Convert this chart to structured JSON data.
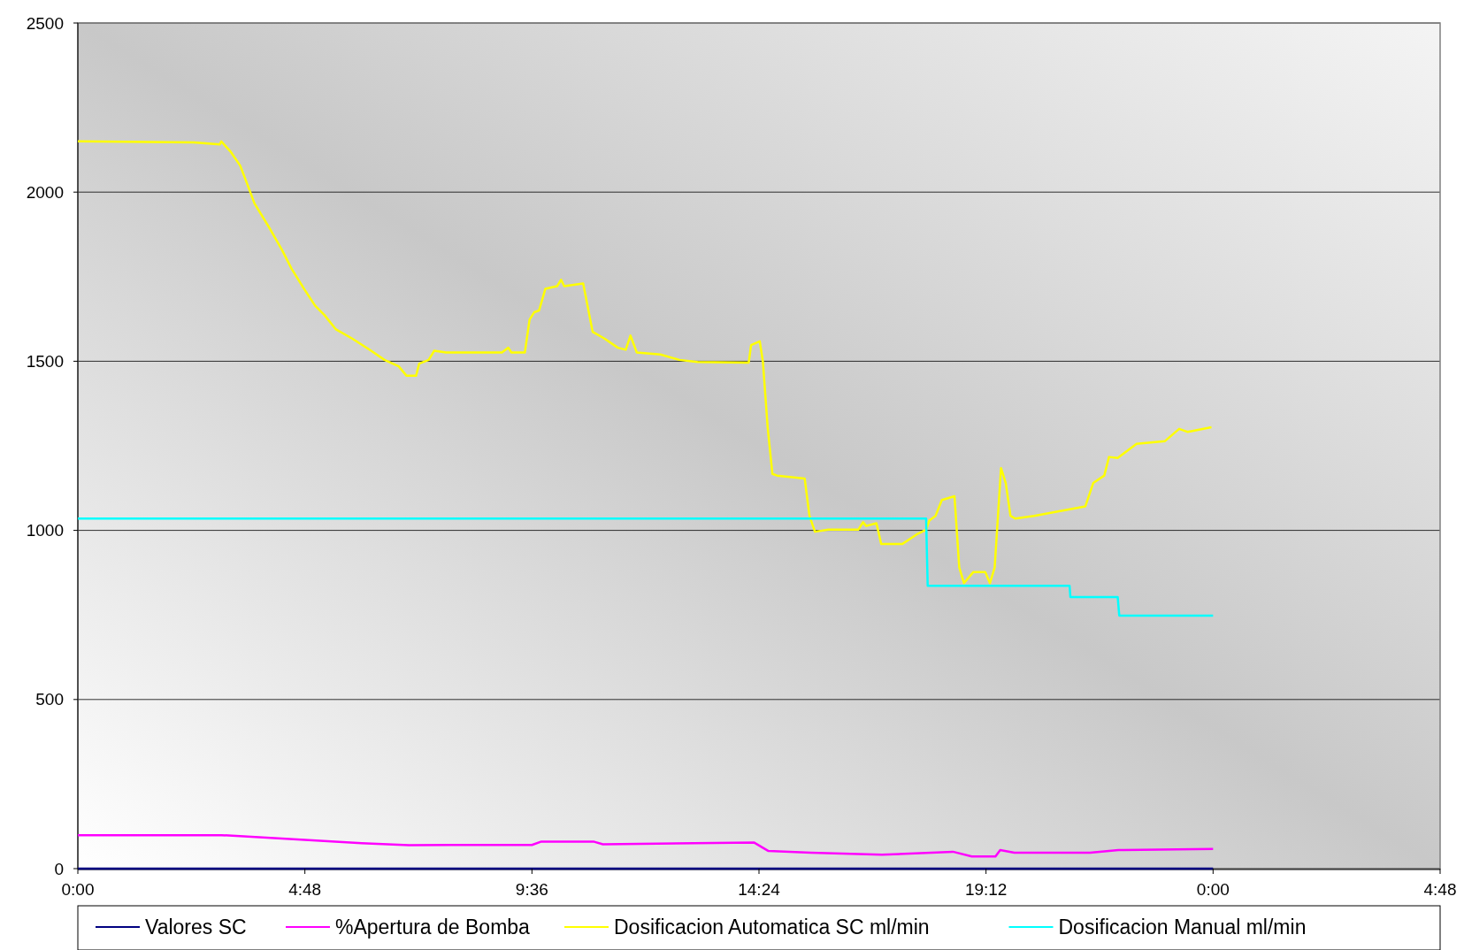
{
  "chart_data": {
    "type": "line",
    "ylim": [
      0,
      2500
    ],
    "yticks": [
      0,
      500,
      1000,
      1500,
      2000,
      2500
    ],
    "xlim": [
      "2000-01-01T00:00",
      "2000-01-02T04:48"
    ],
    "xticks": [
      {
        "value": "2000-01-01T00:00",
        "label": "0:00"
      },
      {
        "value": "2000-01-01T04:48",
        "label": "4:48"
      },
      {
        "value": "2000-01-01T09:36",
        "label": "9:36"
      },
      {
        "value": "2000-01-01T14:24",
        "label": "14:24"
      },
      {
        "value": "2000-01-01T19:12",
        "label": "19:12"
      },
      {
        "value": "2000-01-02T00:00",
        "label": "0:00"
      },
      {
        "value": "2000-01-02T04:48",
        "label": "4:48"
      }
    ],
    "grid": "y",
    "legend": "bottom",
    "marker": "none",
    "line_style": "solid",
    "series": [
      {
        "name": "Valores SC",
        "color": "#000080",
        "x": [
          "2000-01-01T00:00",
          "2000-01-02T00:00"
        ],
        "values": [
          0,
          0
        ]
      },
      {
        "name": "%Apertura de Bomba",
        "color": "#ff00ff",
        "x": [
          "2000-01-01T00:00",
          "2000-01-01T03:02",
          "2000-01-01T04:48",
          "2000-01-01T06:00",
          "2000-01-01T07:00",
          "2000-01-01T08:00",
          "2000-01-01T09:36",
          "2000-01-01T09:48",
          "2000-01-01T10:54",
          "2000-01-01T11:06",
          "2000-01-01T14:18",
          "2000-01-01T14:36",
          "2000-01-01T15:30",
          "2000-01-01T17:00",
          "2000-01-01T18:30",
          "2000-01-01T18:54",
          "2000-01-01T19:24",
          "2000-01-01T19:30",
          "2000-01-01T19:48",
          "2000-01-01T21:24",
          "2000-01-01T22:00",
          "2000-01-02T00:00"
        ],
        "values": [
          99,
          99,
          85,
          75,
          69,
          70,
          70,
          80,
          80,
          72,
          77,
          52,
          47,
          41,
          50,
          36,
          36,
          55,
          47,
          47,
          55,
          58
        ]
      },
      {
        "name": "Dosificacion Automatica SC ml/min",
        "color": "#ffff00",
        "x": [
          "2000-01-01T00:00",
          "2000-01-01T02:27",
          "2000-01-01T03:00",
          "2000-01-01T03:02",
          "2000-01-01T03:14",
          "2000-01-01T03:26",
          "2000-01-01T03:35",
          "2000-01-01T03:44",
          "2000-01-01T04:02",
          "2000-01-01T04:19",
          "2000-01-01T04:31",
          "2000-01-01T04:47",
          "2000-01-01T05:01",
          "2000-01-01T05:13",
          "2000-01-01T05:27",
          "2000-01-01T05:48",
          "2000-01-01T06:12",
          "2000-01-01T06:29",
          "2000-01-01T06:47",
          "2000-01-01T06:57",
          "2000-01-01T07:09",
          "2000-01-01T07:13",
          "2000-01-01T07:25",
          "2000-01-01T07:32",
          "2000-01-01T07:47",
          "2000-01-01T08:58",
          "2000-01-01T09:06",
          "2000-01-01T09:10",
          "2000-01-01T09:27",
          "2000-01-01T09:33",
          "2000-01-01T09:39",
          "2000-01-01T09:45",
          "2000-01-01T09:53",
          "2000-01-01T10:08",
          "2000-01-01T10:13",
          "2000-01-01T10:17",
          "2000-01-01T10:41",
          "2000-01-01T10:53",
          "2000-01-01T11:08",
          "2000-01-01T11:25",
          "2000-01-01T11:35",
          "2000-01-01T11:41",
          "2000-01-01T11:49",
          "2000-01-01T12:19",
          "2000-01-01T12:43",
          "2000-01-01T13:06",
          "2000-01-01T14:11",
          "2000-01-01T14:14",
          "2000-01-01T14:25",
          "2000-01-01T14:29",
          "2000-01-01T14:35",
          "2000-01-01T14:41",
          "2000-01-01T14:47",
          "2000-01-01T15:22",
          "2000-01-01T15:28",
          "2000-01-01T15:35",
          "2000-01-01T15:52",
          "2000-01-01T16:30",
          "2000-01-01T16:36",
          "2000-01-01T16:40",
          "2000-01-01T16:53",
          "2000-01-01T16:59",
          "2000-01-01T17:26",
          "2000-01-01T17:44",
          "2000-01-01T17:56",
          "2000-01-01T18:00",
          "2000-01-01T18:08",
          "2000-01-01T18:16",
          "2000-01-01T18:32",
          "2000-01-01T18:38",
          "2000-01-01T18:44",
          "2000-01-01T18:56",
          "2000-01-01T19:11",
          "2000-01-01T19:17",
          "2000-01-01T19:23",
          "2000-01-01T19:31",
          "2000-01-01T19:37",
          "2000-01-01T19:43",
          "2000-01-01T19:49",
          "2000-01-01T20:13",
          "2000-01-01T20:46",
          "2000-01-01T21:18",
          "2000-01-01T21:28",
          "2000-01-01T21:42",
          "2000-01-01T21:48",
          "2000-01-01T21:59",
          "2000-01-01T22:23",
          "2000-01-01T22:59",
          "2000-01-01T23:17",
          "2000-01-01T23:28",
          "2000-01-01T23:58"
        ],
        "values": [
          2150,
          2147,
          2141,
          2150,
          2119,
          2078,
          2023,
          1967,
          1898,
          1829,
          1774,
          1714,
          1664,
          1636,
          1595,
          1567,
          1531,
          1504,
          1485,
          1457,
          1457,
          1493,
          1504,
          1531,
          1526,
          1526,
          1540,
          1526,
          1526,
          1623,
          1645,
          1650,
          1714,
          1722,
          1741,
          1722,
          1730,
          1587,
          1567,
          1540,
          1534,
          1576,
          1526,
          1520,
          1504,
          1498,
          1496,
          1548,
          1559,
          1498,
          1305,
          1167,
          1162,
          1153,
          1043,
          996,
          1002,
          1002,
          1024,
          1013,
          1021,
          960,
          960,
          988,
          1002,
          1029,
          1043,
          1090,
          1101,
          891,
          844,
          877,
          877,
          844,
          891,
          1184,
          1140,
          1043,
          1035,
          1043,
          1057,
          1071,
          1140,
          1162,
          1217,
          1214,
          1256,
          1264,
          1300,
          1291,
          1305
        ]
      },
      {
        "name": "Dosificacion Manual ml/min",
        "color": "#00ffff",
        "x": [
          "2000-01-01T00:00",
          "2000-01-01T17:56",
          "2000-01-01T17:58",
          "2000-01-01T20:58",
          "2000-01-01T20:59",
          "2000-01-01T21:59",
          "2000-01-01T22:01",
          "2000-01-02T00:00"
        ],
        "values": [
          1035,
          1035,
          836,
          836,
          803,
          803,
          748,
          748
        ]
      }
    ]
  }
}
